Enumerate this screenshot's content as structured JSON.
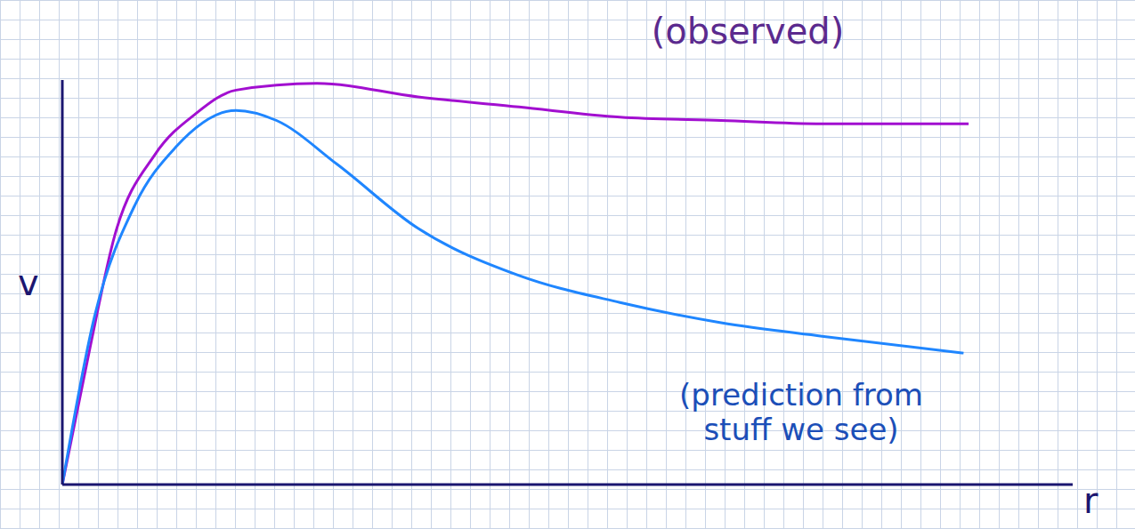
{
  "chart_data": {
    "type": "line",
    "x_label": "r",
    "y_label": "v",
    "xlim": [
      0,
      10
    ],
    "ylim": [
      0,
      12
    ],
    "tick_labels": false,
    "grid": true,
    "series": [
      {
        "color": "#a20fd0",
        "x": [
          0,
          0.27,
          0.52,
          0.92,
          1.32,
          1.72,
          2.52,
          3.52,
          4.52,
          5.52,
          6.52,
          7.52,
          8.97
        ],
        "values": [
          0,
          4.0,
          7.4,
          9.8,
          11.0,
          11.7,
          11.9,
          11.5,
          11.2,
          10.9,
          10.8,
          10.7,
          10.7
        ]
      },
      {
        "color": "#1f86ff",
        "x": [
          0,
          0.32,
          0.72,
          1.12,
          1.72,
          2.12,
          2.72,
          3.52,
          4.52,
          5.52,
          6.52,
          7.52,
          8.92
        ],
        "values": [
          0,
          5.0,
          8.3,
          10.0,
          11.1,
          10.8,
          9.5,
          7.6,
          6.2,
          5.4,
          4.8,
          4.4,
          3.9
        ]
      }
    ],
    "annotations": [
      {
        "text": "(observed)",
        "color": "#5b2a8e"
      },
      {
        "text": "(prediction from stuff we see)",
        "color": "#1c4fb8"
      }
    ]
  }
}
